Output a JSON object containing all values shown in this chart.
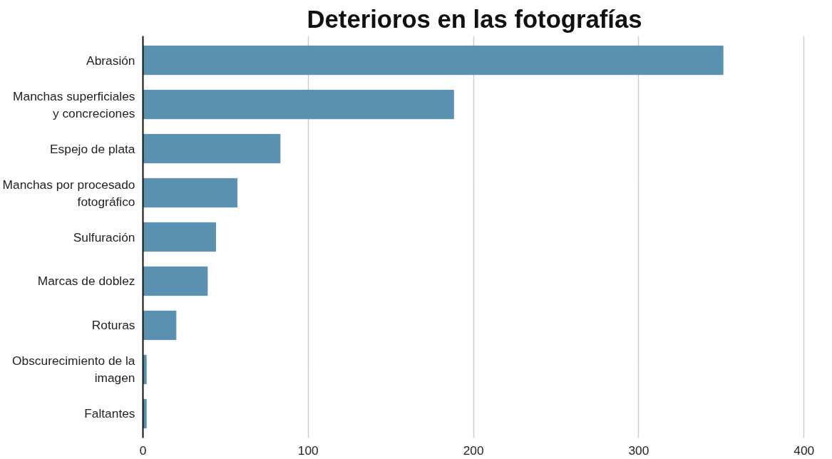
{
  "chart_data": {
    "type": "bar",
    "orientation": "horizontal",
    "title": "Deterioros en las fotografías",
    "categories": [
      "Abrasión",
      "Manchas superficiales y concreciones",
      "Espejo de plata",
      "Manchas por procesado fotográfico",
      "Sulfuración",
      "Marcas de doblez",
      "Roturas",
      "Obscurecimiento de la imagen",
      "Faltantes"
    ],
    "values": [
      351,
      188,
      83,
      57,
      44,
      39,
      20,
      2,
      2
    ],
    "color": "#5a91b0",
    "xlim": [
      0,
      400
    ],
    "xticks": [
      0,
      100,
      200,
      300,
      400
    ],
    "grid": "x"
  }
}
